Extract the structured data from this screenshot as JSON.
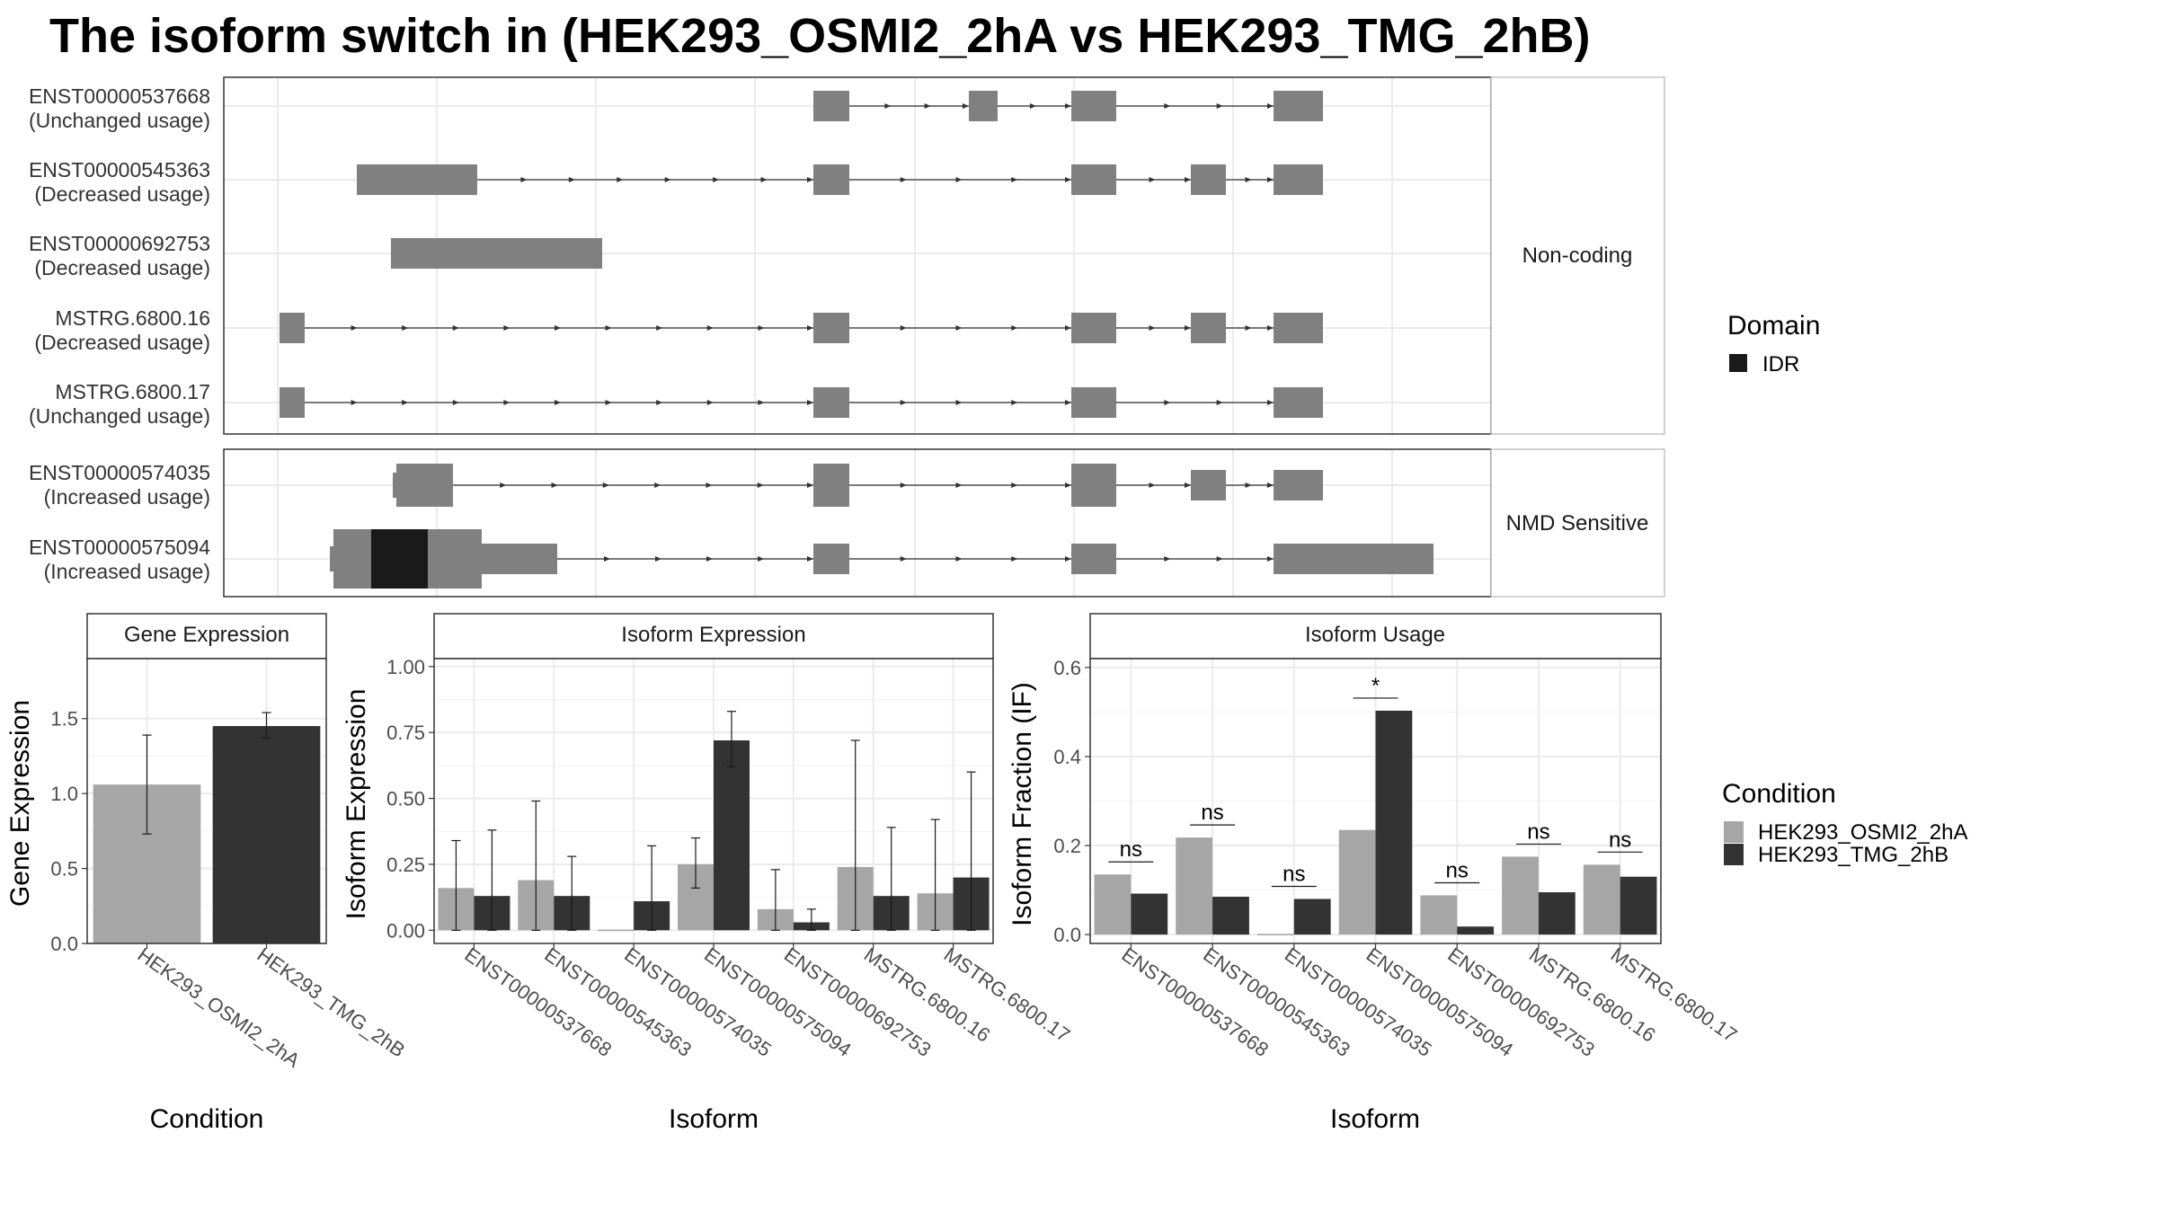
{
  "title": "The isoform switch in  (HEK293_OSMI2_2hA vs HEK293_TMG_2hB)",
  "colors": {
    "exon": "#808080",
    "idr": "#1a1a1a",
    "cond_a": "#a6a6a6",
    "cond_b": "#333333",
    "grid": "#ebebeb",
    "panel_border": "#333333"
  },
  "transcript_panel": {
    "groups": [
      {
        "label": "Non-coding",
        "transcripts": [
          {
            "id": "ENST00000537668",
            "usage": "(Unchanged usage)"
          },
          {
            "id": "ENST00000545363",
            "usage": "(Decreased usage)"
          },
          {
            "id": "ENST00000692753",
            "usage": "(Decreased usage)"
          },
          {
            "id": "MSTRG.6800.16",
            "usage": "(Decreased usage)"
          },
          {
            "id": "MSTRG.6800.17",
            "usage": "(Unchanged usage)"
          }
        ]
      },
      {
        "label": "NMD Sensitive",
        "transcripts": [
          {
            "id": "ENST00000574035",
            "usage": "(Increased usage)"
          },
          {
            "id": "ENST00000575094",
            "usage": "(Increased usage)"
          }
        ]
      }
    ]
  },
  "legend_domain": {
    "title": "Domain",
    "items": [
      {
        "name": "IDR",
        "color": "#1a1a1a"
      }
    ]
  },
  "legend_condition": {
    "title": "Condition",
    "items": [
      {
        "name": "HEK293_OSMI2_2hA",
        "color": "#a6a6a6"
      },
      {
        "name": "HEK293_TMG_2hB",
        "color": "#333333"
      }
    ]
  },
  "chart_data": [
    {
      "type": "bar",
      "title": "Gene Expression",
      "xlabel": "Condition",
      "ylabel": "Gene Expression",
      "categories": [
        "HEK293_OSMI2_2hA",
        "HEK293_TMG_2hB"
      ],
      "values": [
        1.06,
        1.45
      ],
      "error_low": [
        0.73,
        1.37
      ],
      "error_high": [
        1.39,
        1.54
      ],
      "ylim": [
        0,
        1.9
      ],
      "yticks": [
        "0.0",
        "0.5",
        "1.0",
        "1.5"
      ],
      "ytick_values": [
        0,
        0.5,
        1.0,
        1.5
      ],
      "grid": true
    },
    {
      "type": "bar",
      "title": "Isoform Expression",
      "xlabel": "Isoform",
      "ylabel": "Isoform Expression",
      "categories": [
        "ENST00000537668",
        "ENST00000545363",
        "ENST00000574035",
        "ENST00000575094",
        "ENST00000692753",
        "MSTRG.6800.16",
        "MSTRG.6800.17"
      ],
      "series": [
        {
          "name": "HEK293_OSMI2_2hA",
          "values": [
            0.16,
            0.19,
            0.0,
            0.25,
            0.08,
            0.24,
            0.14
          ],
          "error_low": [
            0.0,
            0.0,
            0.0,
            0.16,
            0.0,
            0.0,
            0.0
          ],
          "error_high": [
            0.34,
            0.49,
            0.0,
            0.35,
            0.23,
            0.72,
            0.42
          ]
        },
        {
          "name": "HEK293_TMG_2hB",
          "values": [
            0.13,
            0.13,
            0.11,
            0.72,
            0.03,
            0.13,
            0.2
          ],
          "error_low": [
            0.0,
            0.0,
            0.0,
            0.62,
            0.0,
            0.0,
            0.0
          ],
          "error_high": [
            0.38,
            0.28,
            0.32,
            0.83,
            0.08,
            0.39,
            0.6
          ]
        }
      ],
      "ylim": [
        -0.05,
        1.03
      ],
      "yticks": [
        "0.00",
        "0.25",
        "0.50",
        "0.75",
        "1.00"
      ],
      "ytick_values": [
        0,
        0.25,
        0.5,
        0.75,
        1.0
      ],
      "grid": true
    },
    {
      "type": "bar",
      "title": "Isoform Usage",
      "xlabel": "Isoform",
      "ylabel": "Isoform Fraction (IF)",
      "categories": [
        "ENST00000537668",
        "ENST00000545363",
        "ENST00000574035",
        "ENST00000575094",
        "ENST00000692753",
        "MSTRG.6800.16",
        "MSTRG.6800.17"
      ],
      "series": [
        {
          "name": "HEK293_OSMI2_2hA",
          "values": [
            0.135,
            0.218,
            0.0,
            0.235,
            0.088,
            0.175,
            0.157
          ]
        },
        {
          "name": "HEK293_TMG_2hB",
          "values": [
            0.092,
            0.085,
            0.08,
            0.503,
            0.018,
            0.095,
            0.13
          ]
        }
      ],
      "significance": [
        "ns",
        "ns",
        "ns",
        "*",
        "ns",
        "ns",
        "ns"
      ],
      "ylim": [
        -0.02,
        0.62
      ],
      "yticks": [
        "0.0",
        "0.2",
        "0.4",
        "0.6"
      ],
      "ytick_values": [
        0,
        0.2,
        0.4,
        0.6
      ],
      "grid": true
    }
  ]
}
